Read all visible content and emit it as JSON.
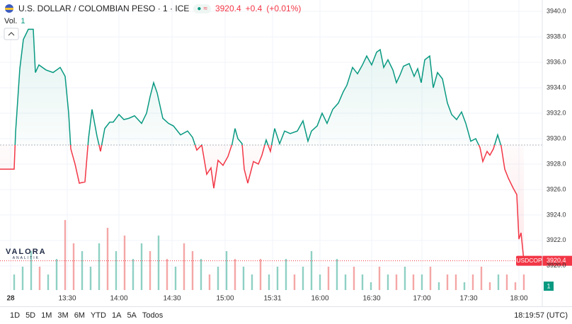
{
  "header": {
    "title": "U.S. DOLLAR / COLOMBIAN PESO · 1 · ICE",
    "price": "3920.4",
    "change": "+0.4",
    "change_pct": "(+0.01%)",
    "volume_label": "Vol.",
    "volume_value": "1"
  },
  "logo": {
    "name": "VALORA",
    "sub": "ANALITIK"
  },
  "chart_data": {
    "type": "baseline",
    "symbol": "USDCOP",
    "last_value": 3920.4,
    "last_label": "3920.4",
    "baseline": 3929.5,
    "up_color": "#089981",
    "down_color": "#f23645",
    "x": [
      0,
      10,
      11,
      14,
      16.5,
      20,
      23.5,
      25,
      27.5,
      32.5,
      37.5,
      42.5,
      46,
      48.5,
      50,
      53,
      56,
      60,
      62.5,
      65,
      68.5,
      71,
      74,
      77.5,
      80,
      84,
      87.5,
      91,
      95,
      100,
      103.5,
      106,
      108.5,
      111,
      115,
      119,
      122.5,
      127.5,
      132.5,
      136,
      139,
      142.5,
      146,
      149,
      151,
      154,
      157.5,
      161,
      164,
      166,
      168,
      171,
      172.5,
      175,
      179,
      182.5,
      185,
      188,
      191,
      194,
      197.5,
      201,
      205,
      210,
      214,
      217.5,
      220,
      224,
      227.5,
      231,
      235,
      239,
      242.5,
      245,
      249,
      252.5,
      256,
      259,
      262.5,
      266,
      268.5,
      271,
      274,
      277.5,
      280,
      282.5,
      285,
      289,
      292.5,
      295,
      297.5,
      300,
      303.5,
      306,
      309,
      312.5,
      316,
      319,
      322.5,
      326,
      329,
      332.5,
      336,
      339,
      341,
      344,
      346,
      348.5,
      351.5,
      354,
      356.5,
      359,
      362.5,
      365,
      366.5,
      368,
      370
    ],
    "values": [
      3927.6,
      3927.6,
      3930.5,
      3935.5,
      3937.8,
      3938.6,
      3938.6,
      3935.2,
      3935.8,
      3935.4,
      3935.2,
      3935.6,
      3934.9,
      3932.0,
      3929.2,
      3928.0,
      3926.5,
      3926.6,
      3930.0,
      3932.3,
      3930.2,
      3929.0,
      3930.8,
      3931.3,
      3931.3,
      3931.9,
      3931.5,
      3931.6,
      3931.8,
      3931.2,
      3932.0,
      3933.3,
      3934.4,
      3933.6,
      3931.6,
      3931.2,
      3931.0,
      3930.3,
      3930.6,
      3930.1,
      3929.1,
      3929.5,
      3927.2,
      3927.7,
      3926.1,
      3928.3,
      3927.9,
      3928.6,
      3929.6,
      3930.8,
      3930.0,
      3929.6,
      3927.6,
      3926.5,
      3928.2,
      3928.0,
      3928.7,
      3929.9,
      3929.0,
      3930.8,
      3929.6,
      3930.6,
      3930.4,
      3930.6,
      3931.4,
      3929.8,
      3930.6,
      3931.0,
      3932.0,
      3931.2,
      3932.3,
      3932.8,
      3933.7,
      3934.2,
      3935.6,
      3935.1,
      3935.8,
      3936.5,
      3935.8,
      3936.8,
      3937.0,
      3935.6,
      3936.2,
      3935.4,
      3934.4,
      3935.0,
      3935.7,
      3935.9,
      3934.9,
      3935.5,
      3934.4,
      3936.2,
      3936.5,
      3934.0,
      3935.2,
      3934.7,
      3932.8,
      3931.9,
      3931.5,
      3932.1,
      3931.2,
      3929.8,
      3930.0,
      3929.3,
      3928.2,
      3929.0,
      3928.7,
      3929.2,
      3930.3,
      3929.4,
      3927.6,
      3926.9,
      3926.1,
      3925.6,
      3922.1,
      3922.6,
      3920.4
    ],
    "xlim": [
      0,
      383
    ],
    "ylim": [
      3918.1,
      3940.9
    ],
    "xticks": [
      {
        "value": 7.5,
        "label": "28"
      },
      {
        "value": 47.5,
        "label": "13:30"
      },
      {
        "value": 84,
        "label": "14:00"
      },
      {
        "value": 121.5,
        "label": "14:30"
      },
      {
        "value": 159,
        "label": "15:00"
      },
      {
        "value": 192.5,
        "label": "15:31"
      },
      {
        "value": 226,
        "label": "16:00"
      },
      {
        "value": 262.5,
        "label": "16:30"
      },
      {
        "value": 298,
        "label": "17:00"
      },
      {
        "value": 331,
        "label": "17:30"
      },
      {
        "value": 366.5,
        "label": "18:00"
      }
    ],
    "yticks": [
      {
        "value": 3920,
        "label": "3920.0"
      },
      {
        "value": 3922,
        "label": "3922.0"
      },
      {
        "value": 3924,
        "label": "3924.0"
      },
      {
        "value": 3926,
        "label": "3926.0"
      },
      {
        "value": 3928,
        "label": "3928.0"
      },
      {
        "value": 3930,
        "label": "3930.0"
      },
      {
        "value": 3932,
        "label": "3932.0"
      },
      {
        "value": 3934,
        "label": "3934.0"
      },
      {
        "value": 3936,
        "label": "3936.0"
      },
      {
        "value": 3938,
        "label": "3938.0"
      },
      {
        "value": 3940,
        "label": "3940.0"
      }
    ],
    "grid": true,
    "volume": {
      "ylim": [
        0,
        10
      ],
      "x": [
        10,
        16,
        22,
        28,
        34,
        40,
        46,
        52,
        58,
        64,
        70,
        76,
        82,
        88,
        94,
        100,
        106,
        112,
        118,
        124,
        130,
        136,
        142,
        148,
        154,
        160,
        166,
        172,
        178,
        184,
        190,
        196,
        202,
        208,
        214,
        220,
        226,
        232,
        238,
        244,
        250,
        256,
        262,
        268,
        274,
        280,
        286,
        292,
        298,
        304,
        310,
        316,
        322,
        328,
        334,
        340,
        346,
        352,
        358,
        364,
        370
      ],
      "values": [
        2,
        3,
        5,
        3,
        2,
        4,
        9,
        6,
        5,
        3,
        6,
        8,
        5,
        7,
        4,
        6,
        5,
        7,
        4,
        3,
        6,
        5,
        4,
        2,
        3,
        5,
        4,
        3,
        2,
        4,
        2,
        3,
        4,
        2,
        3,
        5,
        2,
        3,
        4,
        2,
        3,
        2,
        1,
        3,
        2,
        2,
        3,
        2,
        2,
        3,
        1,
        2,
        2,
        1,
        2,
        3,
        1,
        2,
        2,
        1,
        2
      ],
      "colors": [
        "#8fd0c4",
        "#8fd0c4",
        "#8fd0c4",
        "#f5a6a6",
        "#8fd0c4",
        "#8fd0c4",
        "#f5a6a6",
        "#f5a6a6",
        "#8fd0c4",
        "#8fd0c4",
        "#8fd0c4",
        "#f5a6a6",
        "#8fd0c4",
        "#f5a6a6",
        "#8fd0c4",
        "#8fd0c4",
        "#f5a6a6",
        "#8fd0c4",
        "#f5a6a6",
        "#8fd0c4",
        "#f5a6a6",
        "#f5a6a6",
        "#8fd0c4",
        "#f5a6a6",
        "#8fd0c4",
        "#8fd0c4",
        "#f5a6a6",
        "#8fd0c4",
        "#8fd0c4",
        "#f5a6a6",
        "#8fd0c4",
        "#8fd0c4",
        "#8fd0c4",
        "#f5a6a6",
        "#8fd0c4",
        "#8fd0c4",
        "#8fd0c4",
        "#f5a6a6",
        "#8fd0c4",
        "#8fd0c4",
        "#f5a6a6",
        "#8fd0c4",
        "#8fd0c4",
        "#f5a6a6",
        "#8fd0c4",
        "#f5a6a6",
        "#8fd0c4",
        "#f5a6a6",
        "#8fd0c4",
        "#f5a6a6",
        "#8fd0c4",
        "#f5a6a6",
        "#f5a6a6",
        "#8fd0c4",
        "#f5a6a6",
        "#f5a6a6",
        "#f5a6a6",
        "#8fd0c4",
        "#f5a6a6",
        "#f5a6a6",
        "#f5a6a6"
      ]
    }
  },
  "toolbar": {
    "ranges": [
      "1D",
      "5D",
      "1M",
      "3M",
      "6M",
      "YTD",
      "1A",
      "5A",
      "Todos"
    ],
    "clock": "18:19:57 (UTC)"
  }
}
